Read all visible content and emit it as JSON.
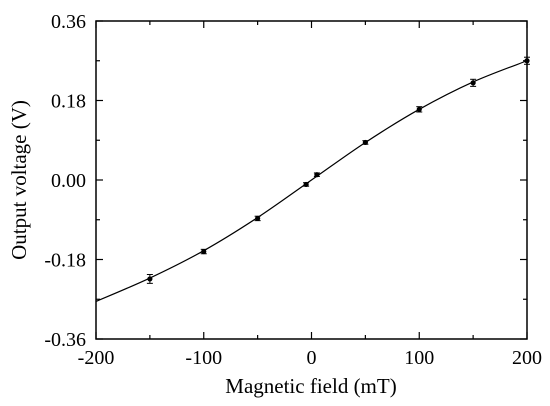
{
  "chart_data": {
    "type": "line",
    "xlabel": "Magnetic field (mT)",
    "ylabel": "Output voltage (V)",
    "xlim": [
      -200,
      200
    ],
    "ylim": [
      -0.36,
      0.36
    ],
    "x_ticks": [
      -200,
      -100,
      0,
      100,
      200
    ],
    "x_tick_labels": [
      "-200",
      "-100",
      "0",
      "100",
      "200"
    ],
    "y_ticks": [
      -0.36,
      -0.18,
      0.0,
      0.18,
      0.36
    ],
    "y_tick_labels": [
      "-0.36",
      "-0.18",
      "0.00",
      "0.18",
      "0.36"
    ],
    "grid": false,
    "series": [
      {
        "marker": "filled-circle",
        "points": [
          {
            "x": -150,
            "y": -0.224,
            "err": 0.01
          },
          {
            "x": -100,
            "y": -0.162,
            "err": 0.005
          },
          {
            "x": -50,
            "y": -0.087,
            "err": 0.005
          },
          {
            "x": -5,
            "y": -0.01,
            "err": 0.004
          },
          {
            "x": 5,
            "y": 0.012,
            "err": 0.004
          },
          {
            "x": 50,
            "y": 0.085,
            "err": 0.004
          },
          {
            "x": 100,
            "y": 0.16,
            "err": 0.006
          },
          {
            "x": 150,
            "y": 0.22,
            "err": 0.008
          },
          {
            "x": 200,
            "y": 0.27,
            "err": 0.008
          }
        ],
        "fit_curve": {
          "x": [
            -200,
            -150,
            -100,
            -50,
            0,
            50,
            100,
            150,
            200
          ],
          "y": [
            -0.275,
            -0.222,
            -0.16,
            -0.085,
            0.0,
            0.085,
            0.16,
            0.222,
            0.27
          ]
        }
      }
    ]
  }
}
